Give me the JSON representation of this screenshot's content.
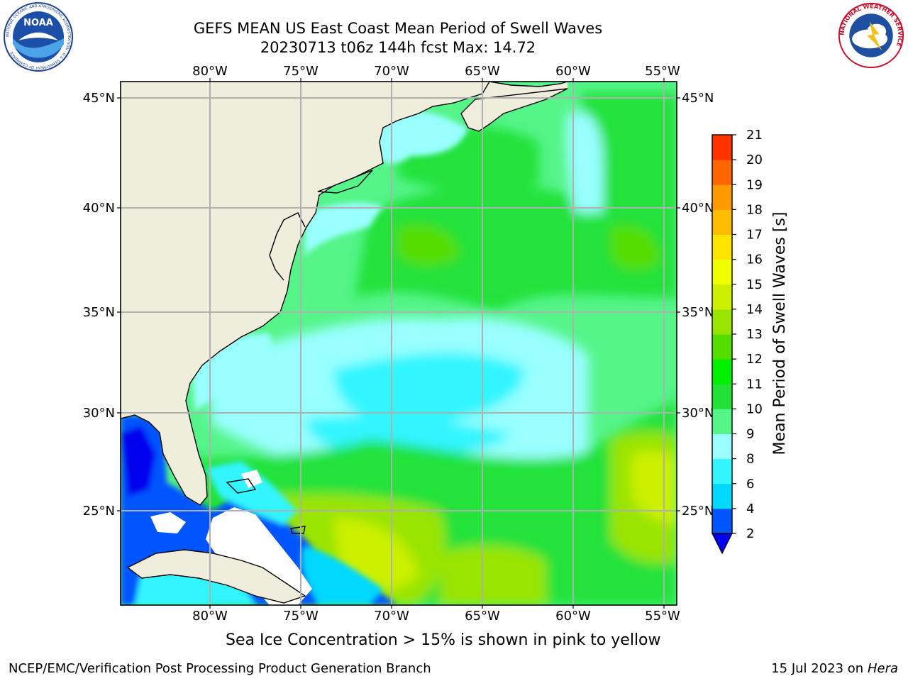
{
  "header": {
    "title_line1": "GEFS MEAN US East Coast Mean Period of Swell Waves",
    "title_line2": "20230713 t06z 144h fcst   Max: 14.72"
  },
  "logos": {
    "left": {
      "text": "NOAA",
      "ring_text": "NATIONAL OCEANIC AND ATMOSPHERIC ADMINISTRATION · U.S. DEPARTMENT OF COMMERCE"
    },
    "right": {
      "ring_text": "NATIONAL WEATHER SERVICE"
    }
  },
  "map": {
    "lon_labels": [
      "80°W",
      "75°W",
      "70°W",
      "65°W",
      "60°W",
      "55°W"
    ],
    "lat_labels": [
      "45°N",
      "40°N",
      "35°N",
      "30°N",
      "25°N"
    ],
    "colors": {
      "land": "#efeddc",
      "grid": "#b0b0b0",
      "coast": "#000000"
    }
  },
  "colorbar": {
    "label": "Mean Period of Swell Waves [s]",
    "ticks": [
      "2",
      "4",
      "6",
      "8",
      "9",
      "10",
      "11",
      "12",
      "13",
      "14",
      "15",
      "16",
      "17",
      "18",
      "19",
      "20",
      "21"
    ],
    "colors": [
      "#0055ff",
      "#00d8ff",
      "#33f5ff",
      "#99ffff",
      "#55f58a",
      "#22e23a",
      "#00f000",
      "#55dd00",
      "#99e400",
      "#ccf000",
      "#f0ff00",
      "#ffe400",
      "#ffbb00",
      "#ff9900",
      "#ff6600",
      "#ff3300",
      "#ff0000"
    ],
    "under_color": "#0000ee"
  },
  "notes": {
    "sea_ice": "Sea Ice Concentration > 15% is shown in pink to yellow"
  },
  "footer": {
    "left": "NCEP/EMC/Verification Post Processing Product Generation Branch",
    "date": "15 Jul 2023 on",
    "host": "Hera"
  }
}
